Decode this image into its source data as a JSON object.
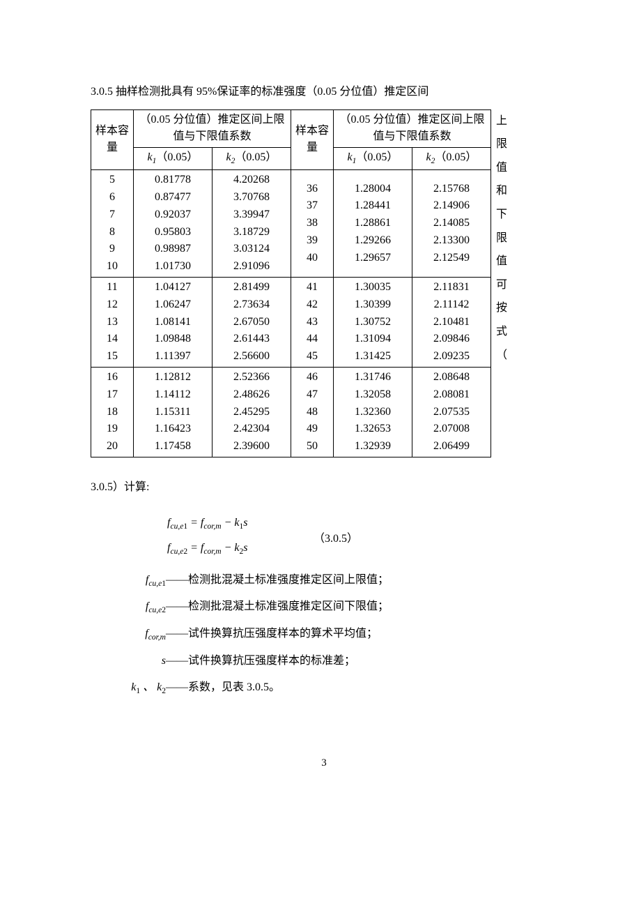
{
  "heading": "3.0.5  抽样检测批具有 95%保证率的标准强度（0.05 分位值）推定区间",
  "vertical_chars": "上限值和下限值可按式（",
  "table": {
    "header_top_left": "样本容量",
    "header_top_right": "样本容量",
    "group_header": "（0.05 分位值）推定区间上限值与下限值系数",
    "k1_label": "k₁（0.05）",
    "k2_label": "k₂（0.05）",
    "left_blocks": [
      {
        "n": "5\n6\n7\n8\n9\n10",
        "k1": "0.81778\n0.87477\n0.92037\n0.95803\n0.98987\n1.01730",
        "k2": "4.20268\n3.70768\n3.39947\n3.18729\n3.03124\n2.91096"
      },
      {
        "n": "11\n12\n13\n14\n15",
        "k1": "1.04127\n1.06247\n1.08141\n1.09848\n1.11397",
        "k2": "2.81499\n2.73634\n2.67050\n2.61443\n2.56600"
      },
      {
        "n": "16\n17\n18\n19\n20",
        "k1": "1.12812\n1.14112\n1.15311\n1.16423\n1.17458",
        "k2": "2.52366\n2.48626\n2.45295\n2.42304\n2.39600"
      }
    ],
    "right_blocks": [
      {
        "n": "36\n37\n38\n39\n40",
        "k1": "1.28004\n1.28441\n1.28861\n1.29266\n1.29657",
        "k2": "2.15768\n2.14906\n2.14085\n2.13300\n2.12549"
      },
      {
        "n": "41\n42\n43\n44\n45",
        "k1": "1.30035\n1.30399\n1.30752\n1.31094\n1.31425",
        "k2": "2.11831\n2.11142\n2.10481\n2.09846\n2.09235"
      },
      {
        "n": "46\n47\n48\n49\n50",
        "k1": "1.31746\n1.32058\n1.32360\n1.32653\n1.32939",
        "k2": "2.08648\n2.08081\n2.07535\n2.07008\n2.06499"
      }
    ]
  },
  "after_table": "3.0.5）计算:",
  "formula": {
    "line1": "f_{cu,e1} = f_{cor,m} − k₁s",
    "line2": "f_{cu,e2} = f_{cor,m} − k₂s",
    "number": "（3.0.5）"
  },
  "definitions": [
    {
      "sym_html": "<i>f</i><span class='sub'>cu,e</span><span class='sub upright'>1</span>",
      "text": "——检测批混凝土标准强度推定区间上限值；"
    },
    {
      "sym_html": "<i>f</i><span class='sub'>cu,e</span><span class='sub upright'>2</span>",
      "text": "——检测批混凝土标准强度推定区间下限值；"
    },
    {
      "sym_html": "<i>f</i><span class='sub'>cor,m</span>",
      "text": "——试件换算抗压强度样本的算术平均值；"
    },
    {
      "sym_html": "<i>s</i>",
      "text": "——试件换算抗压强度样本的标准差；"
    },
    {
      "sym_html": "<i>k</i><span class='sub upright'>1</span> 、 <i>k</i><span class='sub upright'>2</span>",
      "text": "——系数，见表 3.0.5。"
    }
  ],
  "page_number": "3"
}
